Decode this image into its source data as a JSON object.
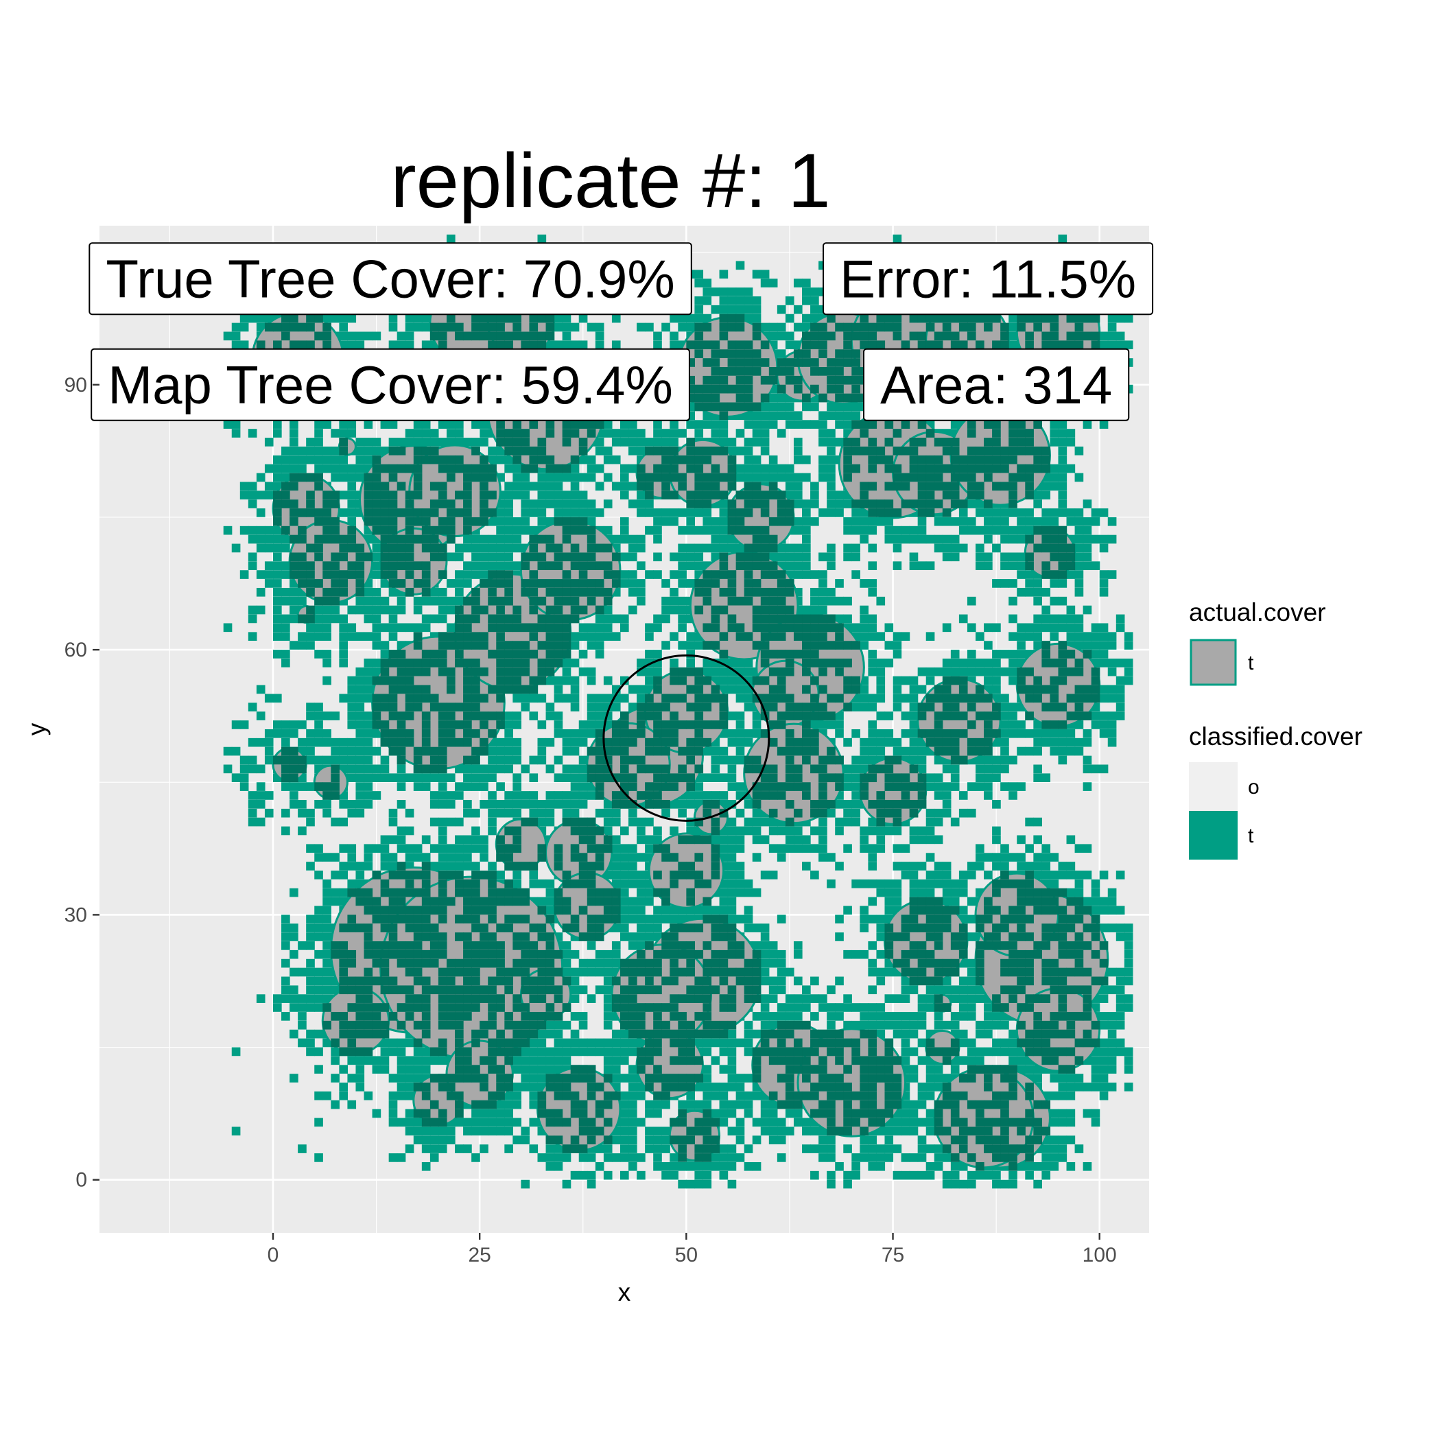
{
  "chart_data": {
    "type": "heatmap",
    "title": "replicate #: 1",
    "xlabel": "x",
    "ylabel": "y",
    "xlim": [
      -21,
      106
    ],
    "ylim": [
      -6,
      108
    ],
    "x_ticks": [
      0,
      25,
      50,
      75,
      100
    ],
    "y_ticks": [
      0,
      30,
      60,
      90
    ],
    "grid": true,
    "legend_position": "right",
    "annotations": [
      {
        "text": "True Tree Cover: 70.9%",
        "x": 14.2,
        "y": 102
      },
      {
        "text": "Error: 11.5%",
        "x": 86.5,
        "y": 102
      },
      {
        "text": "Map Tree Cover: 59.4%",
        "x": 14.2,
        "y": 90
      },
      {
        "text": "Area: 314",
        "x": 87.5,
        "y": 90
      }
    ],
    "sample_plot": {
      "center_x": 50,
      "center_y": 50,
      "radius": 10,
      "area": 314
    },
    "true_tree_cover_pct": 70.9,
    "map_tree_cover_pct": 59.4,
    "error_pct": 11.5,
    "legends": [
      {
        "title": "actual.cover",
        "items": [
          {
            "label": "t",
            "fill": "#a9a9a9",
            "stroke": "#009e84"
          }
        ]
      },
      {
        "title": "classified.cover",
        "items": [
          {
            "label": "o",
            "fill": "#f0f0f0"
          },
          {
            "label": "t",
            "fill": "#009e84"
          }
        ]
      }
    ],
    "colors": {
      "panel_background": "#ebebeb",
      "grid_major": "#ffffff",
      "classified_t": "#009e84",
      "actual_cover_fill": "#a9a9a9",
      "actual_cover_stroke": "#009e84",
      "overlap_dark": "#00735f",
      "sample_circle": "#000000"
    },
    "series": [
      {
        "name": "actual.cover",
        "points": [
          {
            "x": 3,
            "y": 93,
            "r": 5.5
          },
          {
            "x": 4,
            "y": 76,
            "r": 4
          },
          {
            "x": 7,
            "y": 70,
            "r": 5
          },
          {
            "x": 17,
            "y": 77,
            "r": 6.5
          },
          {
            "x": 22,
            "y": 78,
            "r": 5.5
          },
          {
            "x": 17,
            "y": 70,
            "r": 4
          },
          {
            "x": 4,
            "y": 64,
            "r": 1
          },
          {
            "x": 2,
            "y": 47,
            "r": 2
          },
          {
            "x": 7,
            "y": 45,
            "r": 2
          },
          {
            "x": 20,
            "y": 54,
            "r": 8
          },
          {
            "x": 29,
            "y": 62,
            "r": 7
          },
          {
            "x": 36,
            "y": 69,
            "r": 6
          },
          {
            "x": 24,
            "y": 97,
            "r": 5
          },
          {
            "x": 30,
            "y": 97,
            "r": 4
          },
          {
            "x": 33,
            "y": 87,
            "r": 7
          },
          {
            "x": 47,
            "y": 80,
            "r": 3
          },
          {
            "x": 52,
            "y": 80,
            "r": 4
          },
          {
            "x": 55,
            "y": 92,
            "r": 6
          },
          {
            "x": 59,
            "y": 75,
            "r": 4
          },
          {
            "x": 57,
            "y": 65,
            "r": 6.5
          },
          {
            "x": 65,
            "y": 58,
            "r": 6.5
          },
          {
            "x": 62,
            "y": 55,
            "r": 4
          },
          {
            "x": 46,
            "y": 48,
            "r": 6
          },
          {
            "x": 50,
            "y": 53,
            "r": 5
          },
          {
            "x": 43,
            "y": 47,
            "r": 5
          },
          {
            "x": 53,
            "y": 41,
            "r": 2
          },
          {
            "x": 63,
            "y": 46,
            "r": 6
          },
          {
            "x": 64,
            "y": 91,
            "r": 3
          },
          {
            "x": 69,
            "y": 93,
            "r": 5.5
          },
          {
            "x": 76,
            "y": 95,
            "r": 6
          },
          {
            "x": 84,
            "y": 95,
            "r": 5
          },
          {
            "x": 95,
            "y": 96,
            "r": 5
          },
          {
            "x": 75,
            "y": 81,
            "r": 6.5
          },
          {
            "x": 80,
            "y": 80,
            "r": 5
          },
          {
            "x": 88,
            "y": 82,
            "r": 6
          },
          {
            "x": 94,
            "y": 71,
            "r": 3
          },
          {
            "x": 95,
            "y": 56,
            "r": 5
          },
          {
            "x": 83,
            "y": 52,
            "r": 5
          },
          {
            "x": 75,
            "y": 44,
            "r": 4
          },
          {
            "x": 17,
            "y": 26,
            "r": 10
          },
          {
            "x": 24,
            "y": 24,
            "r": 11
          },
          {
            "x": 33,
            "y": 21,
            "r": 3
          },
          {
            "x": 10,
            "y": 18,
            "r": 4
          },
          {
            "x": 20,
            "y": 9,
            "r": 3
          },
          {
            "x": 25,
            "y": 12,
            "r": 4
          },
          {
            "x": 30,
            "y": 38,
            "r": 3
          },
          {
            "x": 37,
            "y": 37,
            "r": 4
          },
          {
            "x": 38,
            "y": 31,
            "r": 4
          },
          {
            "x": 50,
            "y": 35,
            "r": 4.5
          },
          {
            "x": 52,
            "y": 23,
            "r": 7
          },
          {
            "x": 47,
            "y": 21,
            "r": 6
          },
          {
            "x": 48,
            "y": 13,
            "r": 4
          },
          {
            "x": 37,
            "y": 8,
            "r": 5
          },
          {
            "x": 51,
            "y": 5,
            "r": 3
          },
          {
            "x": 63,
            "y": 13,
            "r": 5
          },
          {
            "x": 70,
            "y": 11,
            "r": 6.5
          },
          {
            "x": 79,
            "y": 27,
            "r": 5
          },
          {
            "x": 81,
            "y": 20,
            "r": 1
          },
          {
            "x": 81,
            "y": 15,
            "r": 2
          },
          {
            "x": 88,
            "y": 7,
            "r": 6
          },
          {
            "x": 86,
            "y": 7,
            "r": 6
          },
          {
            "x": 93,
            "y": 25,
            "r": 8
          },
          {
            "x": 95,
            "y": 17,
            "r": 5
          },
          {
            "x": 90,
            "y": 30,
            "r": 5
          },
          {
            "x": 9,
            "y": 83,
            "r": 1
          }
        ]
      },
      {
        "name": "classified.cover",
        "cells": "t"
      }
    ]
  }
}
